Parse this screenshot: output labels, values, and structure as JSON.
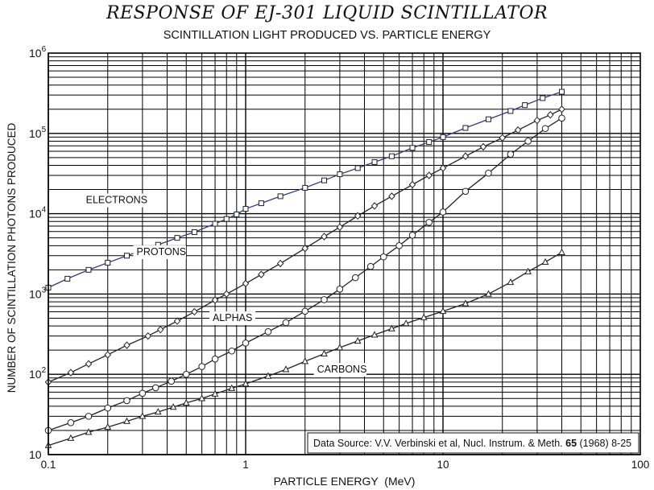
{
  "chart_data": {
    "type": "line",
    "title": "RESPONSE OF EJ-301 LIQUID SCINTILLATOR",
    "subtitle": "SCINTILLATION LIGHT PRODUCED VS. PARTICLE ENERGY",
    "xlabel": "PARTICLE ENERGY  (MeV)",
    "ylabel": "NUMBER OF SCINTILLATION PHOTONS PRODUCED",
    "xscale": "log",
    "yscale": "log",
    "xlim": [
      0.1,
      100
    ],
    "ylim": [
      10,
      1000000
    ],
    "x_ticks": [
      "0.1",
      "1",
      "10",
      "100"
    ],
    "y_ticks": [
      "10",
      "10^2",
      "10^3",
      "10^4",
      "10^5",
      "10^6"
    ],
    "grid": true,
    "source_note": {
      "prefix": "Data Source:  V.V. Verbinski et al, Nucl. Instrum. & Meth. ",
      "bold": "65",
      "suffix": " (1968) 8-25"
    },
    "series": [
      {
        "name": "ELECTRONS",
        "marker": "square",
        "color": "#2e3a8c",
        "x": [
          0.1,
          0.125,
          0.16,
          0.2,
          0.25,
          0.32,
          0.36,
          0.45,
          0.55,
          0.7,
          0.8,
          0.9,
          1.0,
          1.2,
          1.5,
          2.0,
          2.5,
          3.0,
          3.7,
          4.5,
          5.5,
          7.0,
          8.5,
          10.0,
          13.0,
          17.0,
          22.0,
          26.0,
          32.0,
          40.0
        ],
        "y": [
          1200,
          1550,
          2000,
          2450,
          3000,
          3700,
          4100,
          5000,
          5900,
          7500,
          8600,
          9800,
          11500,
          13500,
          16500,
          21000,
          26000,
          31000,
          37000,
          44000,
          52000,
          66000,
          78000,
          90000,
          117000,
          150000,
          190000,
          225000,
          275000,
          330000
        ]
      },
      {
        "name": "PROTONS",
        "marker": "diamond",
        "color": "#222222",
        "x": [
          0.1,
          0.13,
          0.16,
          0.2,
          0.25,
          0.32,
          0.37,
          0.45,
          0.55,
          0.7,
          0.8,
          1.0,
          1.2,
          1.5,
          2.0,
          2.5,
          3.0,
          3.7,
          4.5,
          5.5,
          7.0,
          8.5,
          10.0,
          13.0,
          16.0,
          20.0,
          24.0,
          30.0,
          35.0,
          40.0
        ],
        "y": [
          80,
          105,
          135,
          175,
          230,
          300,
          360,
          460,
          600,
          840,
          1000,
          1350,
          1750,
          2400,
          3700,
          5200,
          6800,
          9400,
          12500,
          16500,
          23000,
          30000,
          37000,
          52000,
          68000,
          88000,
          110000,
          145000,
          170000,
          200000
        ]
      },
      {
        "name": "ALPHAS",
        "marker": "circle",
        "color": "#222222",
        "x": [
          0.1,
          0.13,
          0.16,
          0.2,
          0.25,
          0.3,
          0.35,
          0.42,
          0.5,
          0.6,
          0.7,
          0.85,
          1.0,
          1.3,
          1.6,
          2.0,
          2.5,
          3.0,
          3.6,
          4.3,
          5.0,
          6.0,
          7.0,
          8.5,
          10.0,
          13.0,
          17.0,
          22.0,
          27.0,
          33.0,
          40.0
        ],
        "y": [
          20,
          25,
          30,
          38,
          47,
          58,
          68,
          82,
          100,
          125,
          155,
          195,
          245,
          340,
          440,
          610,
          850,
          1150,
          1600,
          2200,
          2900,
          4000,
          5400,
          7800,
          10500,
          19000,
          32000,
          55000,
          80000,
          115000,
          155000
        ]
      },
      {
        "name": "CARBONS",
        "marker": "triangle",
        "color": "#222222",
        "x": [
          0.1,
          0.13,
          0.16,
          0.2,
          0.25,
          0.3,
          0.36,
          0.43,
          0.5,
          0.6,
          0.7,
          0.85,
          1.0,
          1.3,
          1.6,
          2.0,
          2.5,
          3.0,
          3.7,
          4.5,
          5.5,
          6.5,
          8.0,
          10.0,
          13.0,
          17.0,
          22.0,
          27.0,
          33.0,
          40.0
        ],
        "y": [
          13,
          16,
          19,
          22,
          26,
          30,
          34,
          39,
          44,
          50,
          57,
          67,
          76,
          95,
          115,
          145,
          180,
          215,
          260,
          310,
          370,
          430,
          510,
          610,
          760,
          1000,
          1400,
          1900,
          2500,
          3300
        ]
      }
    ]
  }
}
